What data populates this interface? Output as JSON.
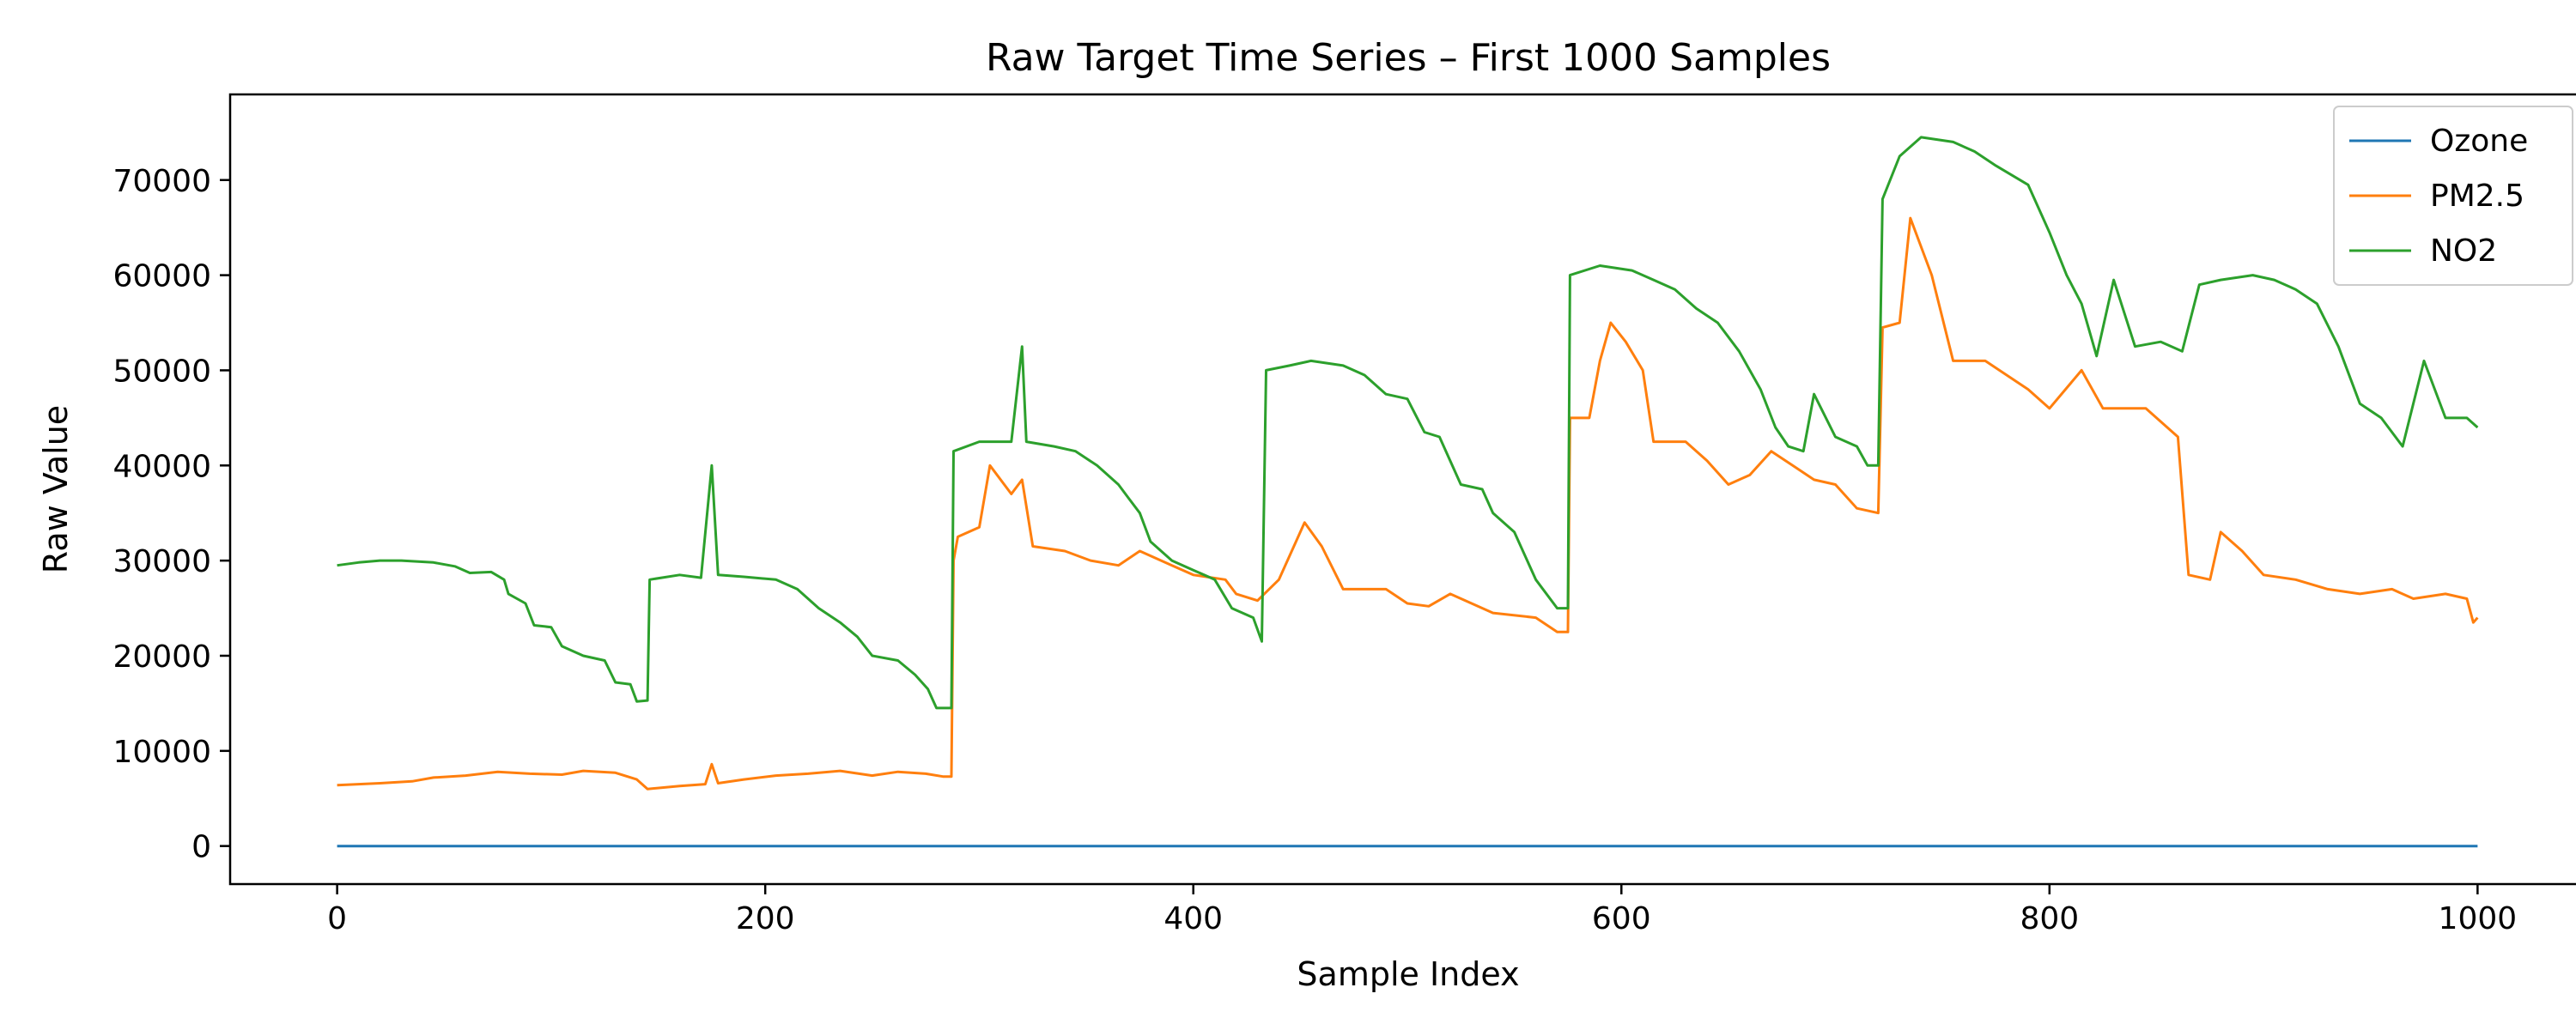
{
  "chart_data": {
    "type": "line",
    "title": "Raw Target Time Series – First 1000 Samples",
    "xlabel": "Sample Index",
    "ylabel": "Raw Value",
    "xlim": [
      -50,
      1050
    ],
    "ylim": [
      -4000,
      79000
    ],
    "xticks": [
      0,
      200,
      400,
      600,
      800,
      1000
    ],
    "yticks": [
      0,
      10000,
      20000,
      30000,
      40000,
      50000,
      60000,
      70000
    ],
    "grid": false,
    "legend_position": "top-right",
    "series": [
      {
        "name": "Ozone",
        "color": "#1f77b4",
        "points": [
          [
            0,
            0
          ],
          [
            1000,
            0
          ]
        ]
      },
      {
        "name": "PM2.5",
        "color": "#ff7f0e",
        "points": [
          [
            0,
            6400
          ],
          [
            20,
            6600
          ],
          [
            35,
            6800
          ],
          [
            45,
            7200
          ],
          [
            60,
            7400
          ],
          [
            75,
            7800
          ],
          [
            90,
            7600
          ],
          [
            105,
            7500
          ],
          [
            115,
            7900
          ],
          [
            130,
            7700
          ],
          [
            140,
            7000
          ],
          [
            145,
            6000
          ],
          [
            160,
            6300
          ],
          [
            172,
            6500
          ],
          [
            175,
            8600
          ],
          [
            178,
            6600
          ],
          [
            190,
            7000
          ],
          [
            205,
            7400
          ],
          [
            220,
            7600
          ],
          [
            235,
            7900
          ],
          [
            250,
            7400
          ],
          [
            262,
            7800
          ],
          [
            275,
            7600
          ],
          [
            283,
            7300
          ],
          [
            287,
            7300
          ],
          [
            288,
            30000
          ],
          [
            290,
            32500
          ],
          [
            300,
            33500
          ],
          [
            305,
            40000
          ],
          [
            315,
            37000
          ],
          [
            320,
            38500
          ],
          [
            325,
            31500
          ],
          [
            340,
            31000
          ],
          [
            352,
            30000
          ],
          [
            365,
            29500
          ],
          [
            375,
            31000
          ],
          [
            390,
            29500
          ],
          [
            400,
            28500
          ],
          [
            415,
            28000
          ],
          [
            420,
            26500
          ],
          [
            430,
            25800
          ],
          [
            440,
            28000
          ],
          [
            452,
            34000
          ],
          [
            460,
            31500
          ],
          [
            470,
            27000
          ],
          [
            490,
            27000
          ],
          [
            500,
            25500
          ],
          [
            510,
            25200
          ],
          [
            520,
            26500
          ],
          [
            530,
            25500
          ],
          [
            540,
            24500
          ],
          [
            560,
            24000
          ],
          [
            570,
            22500
          ],
          [
            575,
            22500
          ],
          [
            576,
            45000
          ],
          [
            585,
            45000
          ],
          [
            590,
            51000
          ],
          [
            595,
            55000
          ],
          [
            602,
            53000
          ],
          [
            610,
            50000
          ],
          [
            615,
            42500
          ],
          [
            630,
            42500
          ],
          [
            640,
            40500
          ],
          [
            650,
            38000
          ],
          [
            660,
            39000
          ],
          [
            670,
            41500
          ],
          [
            680,
            40000
          ],
          [
            690,
            38500
          ],
          [
            700,
            38000
          ],
          [
            710,
            35500
          ],
          [
            720,
            35000
          ],
          [
            722,
            54500
          ],
          [
            730,
            55000
          ],
          [
            735,
            66000
          ],
          [
            745,
            60000
          ],
          [
            755,
            51000
          ],
          [
            770,
            51000
          ],
          [
            790,
            48000
          ],
          [
            800,
            46000
          ],
          [
            815,
            50000
          ],
          [
            825,
            46000
          ],
          [
            845,
            46000
          ],
          [
            860,
            43000
          ],
          [
            865,
            28500
          ],
          [
            875,
            28000
          ],
          [
            880,
            33000
          ],
          [
            890,
            31000
          ],
          [
            900,
            28500
          ],
          [
            915,
            28000
          ],
          [
            930,
            27000
          ],
          [
            945,
            26500
          ],
          [
            960,
            27000
          ],
          [
            970,
            26000
          ],
          [
            985,
            26500
          ],
          [
            995,
            26000
          ],
          [
            998,
            23500
          ],
          [
            1000,
            24000
          ]
        ]
      },
      {
        "name": "NO2",
        "color": "#2ca02c",
        "points": [
          [
            0,
            29500
          ],
          [
            10,
            29800
          ],
          [
            20,
            30000
          ],
          [
            30,
            30000
          ],
          [
            45,
            29800
          ],
          [
            55,
            29400
          ],
          [
            62,
            28700
          ],
          [
            72,
            28800
          ],
          [
            78,
            28000
          ],
          [
            80,
            26500
          ],
          [
            88,
            25500
          ],
          [
            92,
            23200
          ],
          [
            100,
            23000
          ],
          [
            105,
            21000
          ],
          [
            115,
            20000
          ],
          [
            125,
            19500
          ],
          [
            130,
            17200
          ],
          [
            137,
            17000
          ],
          [
            140,
            15200
          ],
          [
            145,
            15300
          ],
          [
            146,
            28000
          ],
          [
            160,
            28500
          ],
          [
            170,
            28200
          ],
          [
            175,
            40000
          ],
          [
            178,
            28500
          ],
          [
            190,
            28300
          ],
          [
            205,
            28000
          ],
          [
            215,
            27000
          ],
          [
            225,
            25000
          ],
          [
            235,
            23500
          ],
          [
            243,
            22000
          ],
          [
            250,
            20000
          ],
          [
            262,
            19500
          ],
          [
            270,
            18000
          ],
          [
            276,
            16500
          ],
          [
            280,
            14500
          ],
          [
            287,
            14500
          ],
          [
            288,
            41500
          ],
          [
            300,
            42500
          ],
          [
            315,
            42500
          ],
          [
            320,
            52500
          ],
          [
            322,
            42500
          ],
          [
            335,
            42000
          ],
          [
            345,
            41500
          ],
          [
            355,
            40000
          ],
          [
            365,
            38000
          ],
          [
            370,
            36500
          ],
          [
            375,
            35000
          ],
          [
            380,
            32000
          ],
          [
            390,
            30000
          ],
          [
            400,
            29000
          ],
          [
            410,
            28000
          ],
          [
            418,
            25000
          ],
          [
            428,
            24000
          ],
          [
            432,
            21500
          ],
          [
            434,
            50000
          ],
          [
            445,
            50500
          ],
          [
            455,
            51000
          ],
          [
            470,
            50500
          ],
          [
            480,
            49500
          ],
          [
            490,
            47500
          ],
          [
            500,
            47000
          ],
          [
            508,
            43500
          ],
          [
            515,
            43000
          ],
          [
            525,
            38000
          ],
          [
            535,
            37500
          ],
          [
            540,
            35000
          ],
          [
            550,
            33000
          ],
          [
            560,
            28000
          ],
          [
            570,
            25000
          ],
          [
            575,
            25000
          ],
          [
            576,
            60000
          ],
          [
            590,
            61000
          ],
          [
            605,
            60500
          ],
          [
            615,
            59500
          ],
          [
            625,
            58500
          ],
          [
            635,
            56500
          ],
          [
            645,
            55000
          ],
          [
            655,
            52000
          ],
          [
            665,
            48000
          ],
          [
            672,
            44000
          ],
          [
            678,
            42000
          ],
          [
            685,
            41500
          ],
          [
            690,
            47500
          ],
          [
            700,
            43000
          ],
          [
            710,
            42000
          ],
          [
            715,
            40000
          ],
          [
            720,
            40000
          ],
          [
            722,
            68000
          ],
          [
            730,
            72500
          ],
          [
            740,
            74500
          ],
          [
            755,
            74000
          ],
          [
            765,
            73000
          ],
          [
            775,
            71500
          ],
          [
            790,
            69500
          ],
          [
            800,
            64500
          ],
          [
            808,
            60000
          ],
          [
            815,
            57000
          ],
          [
            822,
            51500
          ],
          [
            830,
            59500
          ],
          [
            840,
            52500
          ],
          [
            852,
            53000
          ],
          [
            862,
            52000
          ],
          [
            870,
            59000
          ],
          [
            880,
            59500
          ],
          [
            895,
            60000
          ],
          [
            905,
            59500
          ],
          [
            915,
            58500
          ],
          [
            925,
            57000
          ],
          [
            935,
            52500
          ],
          [
            945,
            46500
          ],
          [
            955,
            45000
          ],
          [
            965,
            42000
          ],
          [
            975,
            51000
          ],
          [
            985,
            45000
          ],
          [
            995,
            45000
          ],
          [
            1000,
            44000
          ]
        ]
      }
    ]
  }
}
